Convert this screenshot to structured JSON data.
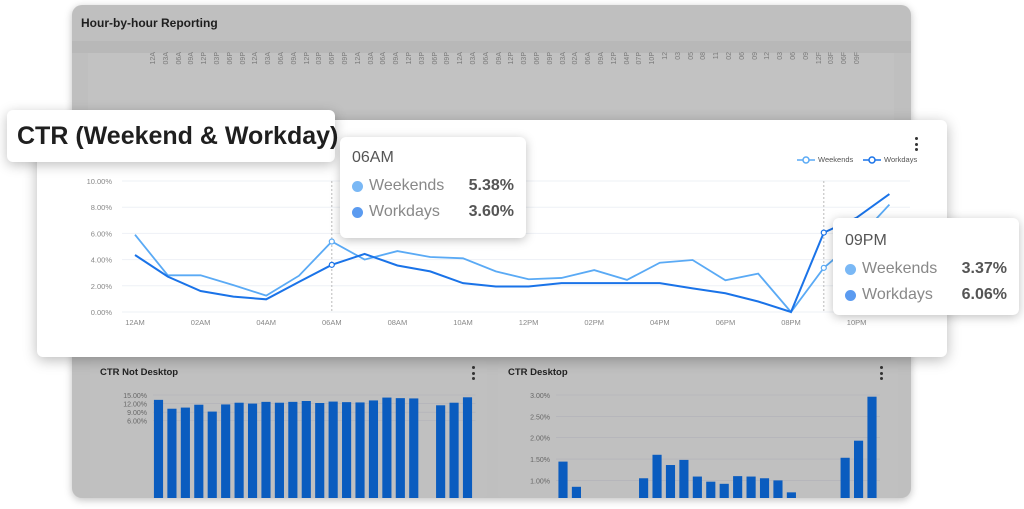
{
  "background_dashboard": {
    "title": "Hour-by-hour Reporting",
    "rotated_tick_labels": [
      "12A",
      "03A",
      "06A",
      "09A",
      "12P",
      "03P",
      "06P",
      "09P",
      "12A",
      "03A",
      "06A",
      "09A",
      "12P",
      "03P",
      "06P",
      "09P",
      "12A",
      "03A",
      "06A",
      "09A",
      "12P",
      "03P",
      "06P",
      "09P",
      "12A",
      "03A",
      "06A",
      "09A",
      "12P",
      "03P",
      "06P",
      "09P",
      "03A",
      "02A",
      "06A",
      "09A",
      "12P",
      "04P",
      "07P",
      "10P",
      "12",
      "03",
      "05",
      "08",
      "11",
      "02",
      "06",
      "09",
      "12",
      "03",
      "06",
      "09",
      "12F",
      "03F",
      "06F",
      "09F"
    ]
  },
  "colors": {
    "weekends": "#5aaaf5",
    "workdays": "#1a73e8",
    "bars": "#0a5cbf",
    "tt_weekends_dot": "#7ab8f5",
    "tt_workdays_dot": "#5b9bf0"
  },
  "main_card": {
    "title": "CTR (Weekend & Workday)",
    "menu_icon": "kebab-vertical-icon",
    "legend": [
      "Weekends",
      "Workdays"
    ],
    "tooltips": [
      {
        "header": "06AM",
        "rows": [
          {
            "label": "Weekends",
            "value": "5.38%"
          },
          {
            "label": "Workdays",
            "value": "3.60%"
          }
        ]
      },
      {
        "header": "09PM",
        "rows": [
          {
            "label": "Weekends",
            "value": "3.37%"
          },
          {
            "label": "Workdays",
            "value": "6.06%"
          }
        ]
      }
    ]
  },
  "panels": {
    "left": {
      "title": "CTR Not Desktop",
      "menu_icon": "kebab-vertical-icon"
    },
    "right": {
      "title": "CTR Desktop",
      "menu_icon": "kebab-vertical-icon"
    }
  },
  "chart_data": [
    {
      "type": "line",
      "title": "CTR (Weekend & Workday)",
      "x": [
        "12AM",
        "01AM",
        "02AM",
        "03AM",
        "04AM",
        "05AM",
        "06AM",
        "07AM",
        "08AM",
        "09AM",
        "10AM",
        "11AM",
        "12PM",
        "01PM",
        "02PM",
        "03PM",
        "04PM",
        "05PM",
        "06PM",
        "07PM",
        "08PM",
        "09PM",
        "10PM",
        "11PM"
      ],
      "x_tick_labels": [
        "12AM",
        "02AM",
        "04AM",
        "06AM",
        "08AM",
        "10AM",
        "12PM",
        "02PM",
        "04PM",
        "06PM",
        "08PM",
        "10PM"
      ],
      "y_tick_labels": [
        "0.00%",
        "2.00%",
        "4.00%",
        "6.00%",
        "8.00%",
        "10.00%"
      ],
      "ylim": [
        0,
        10
      ],
      "grid": true,
      "legend": "top-right",
      "highlighted_x": [
        "06AM",
        "09PM"
      ],
      "series": [
        {
          "name": "Weekends",
          "values": [
            5.9,
            2.8,
            2.8,
            2.05,
            1.25,
            2.77,
            5.38,
            4.0,
            4.65,
            4.2,
            4.1,
            3.1,
            2.5,
            2.6,
            3.2,
            2.45,
            3.76,
            3.97,
            2.42,
            2.93,
            0.0,
            3.37,
            5.5,
            8.2
          ]
        },
        {
          "name": "Workdays",
          "values": [
            4.35,
            2.7,
            1.6,
            1.17,
            0.97,
            2.3,
            3.6,
            4.43,
            3.55,
            3.1,
            2.2,
            1.95,
            1.95,
            2.2,
            2.2,
            2.2,
            2.2,
            1.8,
            1.43,
            0.8,
            0.0,
            6.06,
            7.2,
            9.0
          ]
        }
      ]
    },
    {
      "type": "bar",
      "title": "CTR Not Desktop",
      "y_tick_labels": [
        "6.00%",
        "9.00%",
        "12.00%",
        "15.00%"
      ],
      "ylim": [
        4.5,
        15
      ],
      "grid": true,
      "values": [
        13.3,
        10.2,
        10.6,
        11.6,
        9.2,
        11.7,
        12.3,
        12.0,
        12.6,
        12.3,
        12.6,
        12.9,
        12.2,
        12.7,
        12.5,
        12.4,
        13.1,
        14.1,
        13.9,
        13.8,
        null,
        11.4,
        12.3,
        14.2
      ]
    },
    {
      "type": "bar",
      "title": "CTR Desktop",
      "y_tick_labels": [
        "1.00%",
        "1.50%",
        "2.00%",
        "2.50%",
        "3.00%"
      ],
      "ylim": [
        0.7,
        3
      ],
      "grid": true,
      "values": [
        1.44,
        0.85,
        null,
        null,
        null,
        null,
        1.05,
        1.6,
        1.36,
        1.48,
        1.09,
        0.97,
        0.92,
        1.1,
        1.09,
        1.05,
        1.0,
        0.72,
        null,
        null,
        null,
        1.53,
        1.93,
        2.96
      ]
    }
  ]
}
